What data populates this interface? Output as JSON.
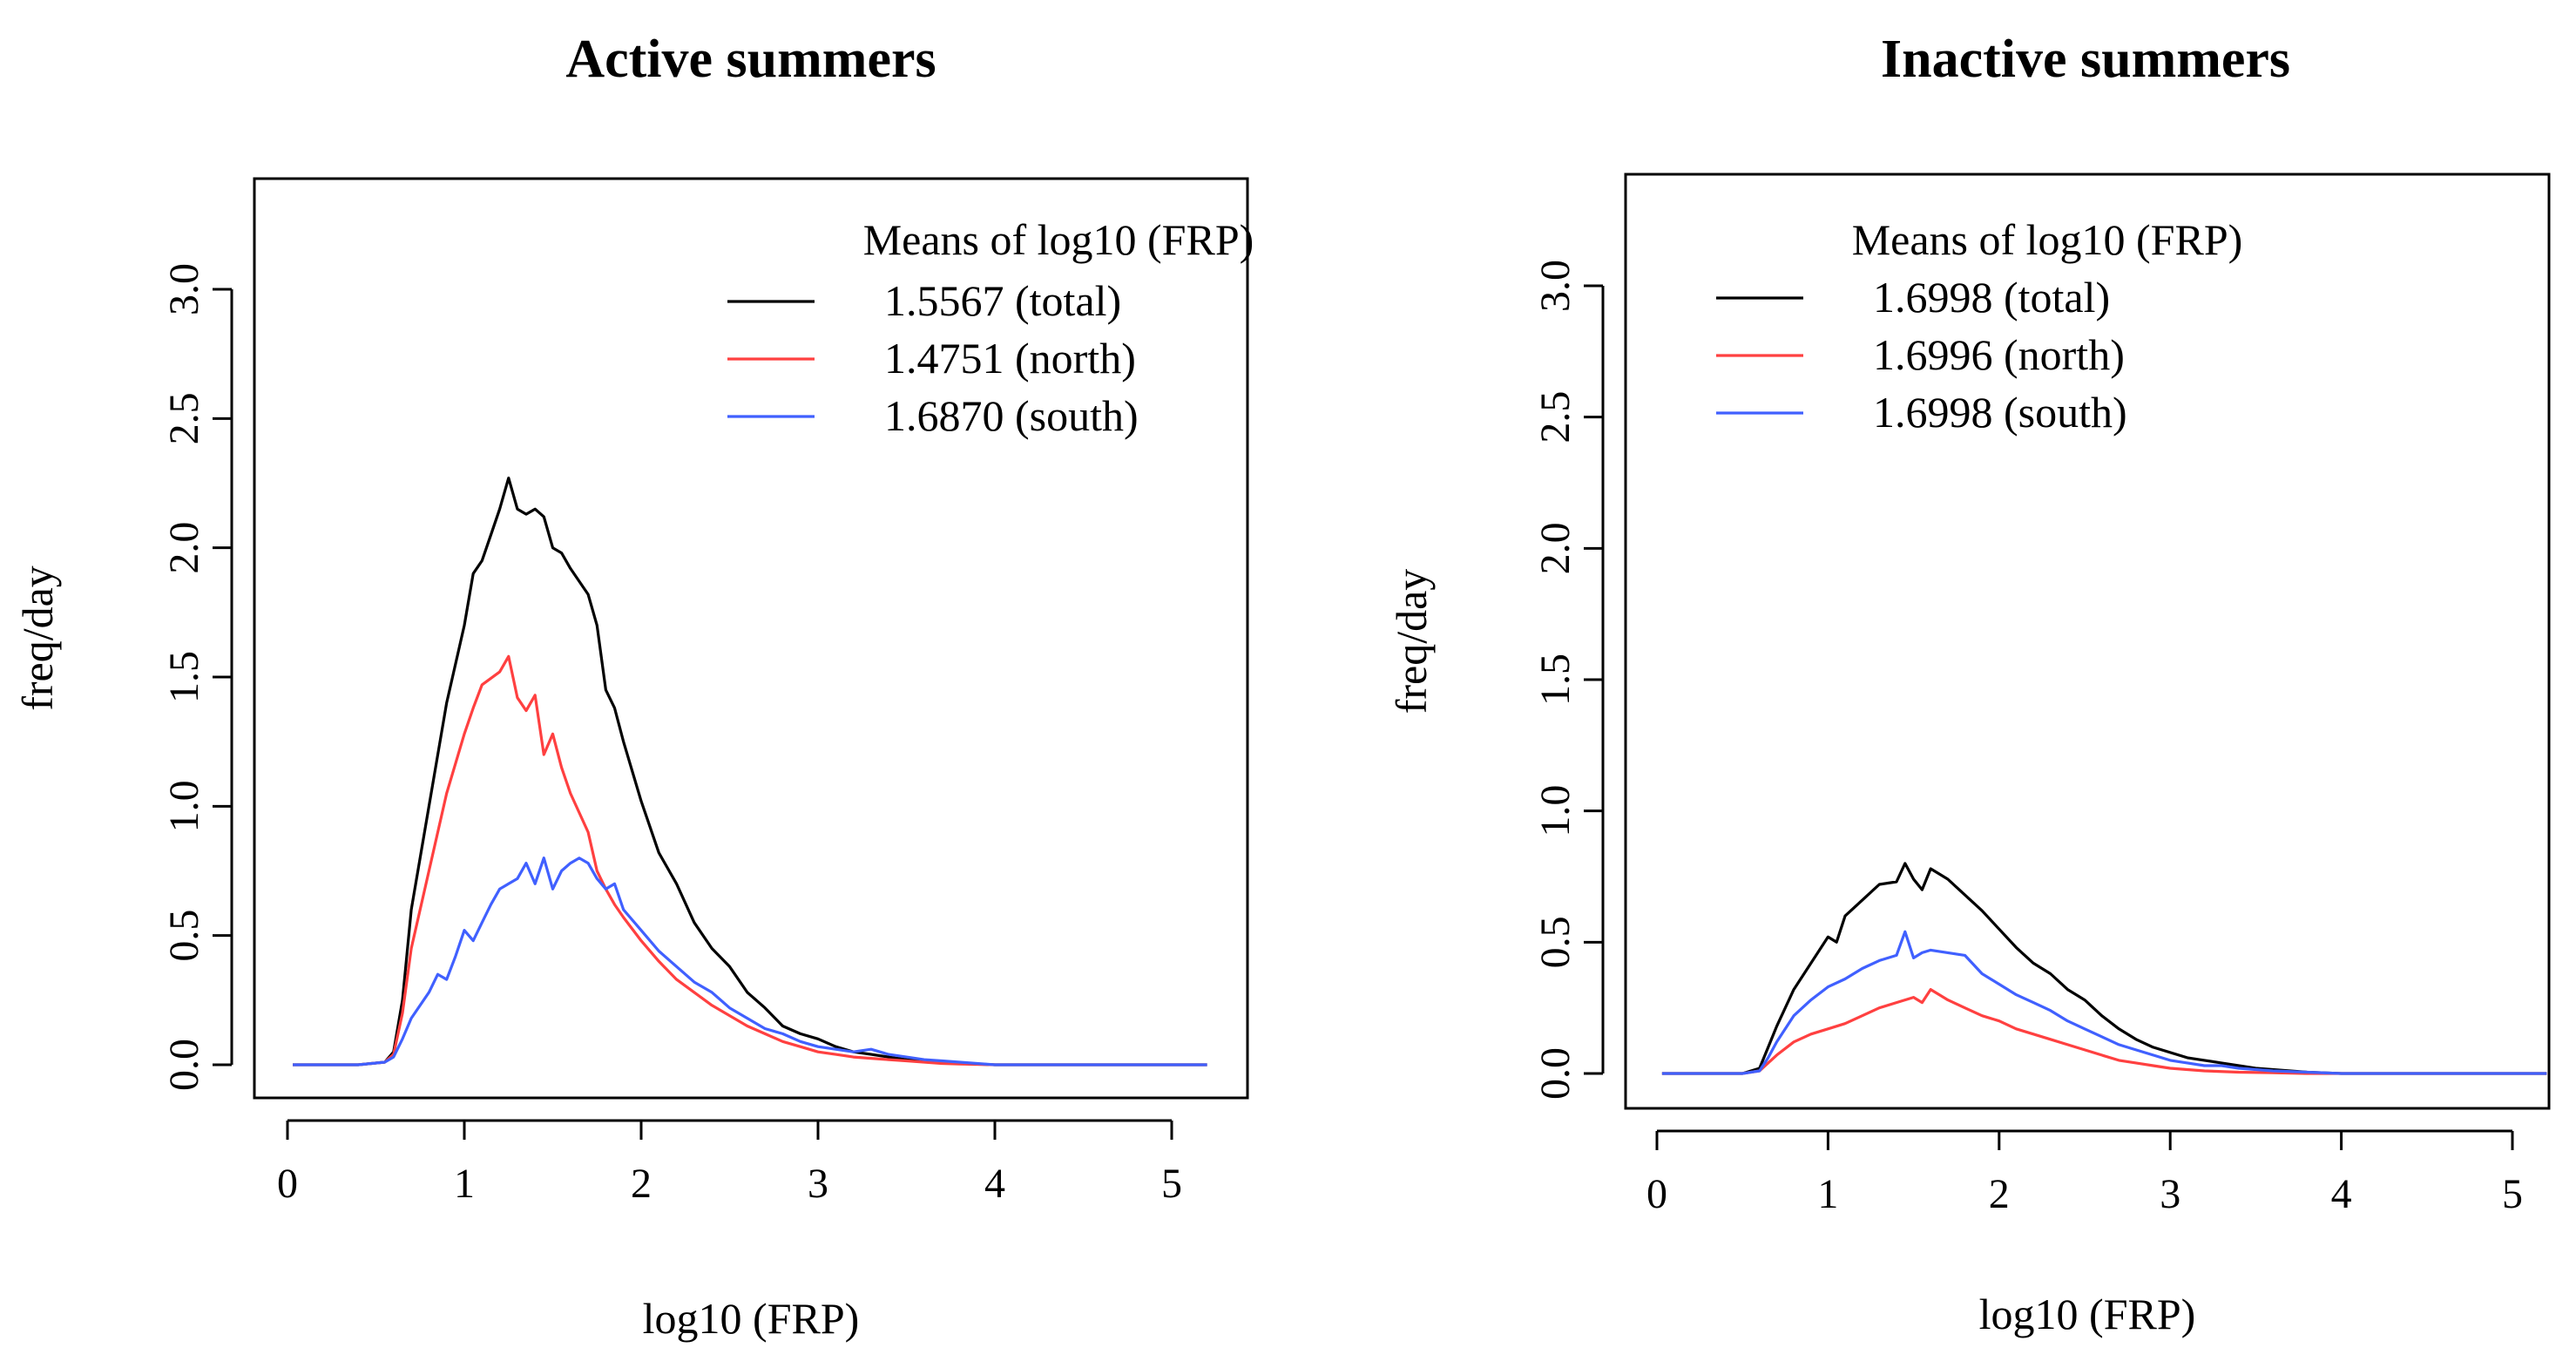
{
  "chart_data": [
    {
      "type": "line",
      "title": "Active summers",
      "xlabel": "log10 (FRP)",
      "ylabel": "freq/day",
      "xlim": [
        0,
        5
      ],
      "ylim": [
        0,
        3.0
      ],
      "x_ticks": [
        "0",
        "1",
        "2",
        "3",
        "4",
        "5"
      ],
      "y_ticks": [
        "0.0",
        "0.5",
        "1.0",
        "1.5",
        "2.0",
        "2.5",
        "3.0"
      ],
      "legend": {
        "title": "Means of log10 (FRP)",
        "position": "top-right"
      },
      "series": [
        {
          "name": "1.5567 (total)",
          "color": "#000000",
          "x": [
            0.03,
            0.4,
            0.55,
            0.6,
            0.65,
            0.7,
            0.8,
            0.9,
            1.0,
            1.05,
            1.1,
            1.15,
            1.2,
            1.25,
            1.3,
            1.35,
            1.4,
            1.45,
            1.5,
            1.55,
            1.6,
            1.7,
            1.75,
            1.8,
            1.85,
            1.9,
            2.0,
            2.1,
            2.2,
            2.3,
            2.4,
            2.5,
            2.6,
            2.7,
            2.8,
            2.9,
            3.0,
            3.1,
            3.2,
            3.3,
            3.4,
            3.5,
            3.6,
            3.7,
            3.8,
            3.9,
            4.0,
            4.5,
            5.0,
            5.2
          ],
          "y": [
            0.0,
            0.0,
            0.01,
            0.05,
            0.25,
            0.6,
            1.0,
            1.4,
            1.7,
            1.9,
            1.95,
            2.05,
            2.15,
            2.27,
            2.15,
            2.13,
            2.15,
            2.12,
            2.0,
            1.98,
            1.92,
            1.82,
            1.7,
            1.45,
            1.38,
            1.25,
            1.02,
            0.82,
            0.7,
            0.55,
            0.45,
            0.38,
            0.28,
            0.22,
            0.15,
            0.12,
            0.1,
            0.07,
            0.05,
            0.04,
            0.03,
            0.02,
            0.015,
            0.01,
            0.005,
            0.003,
            0.0,
            0.0,
            0.0,
            0.0
          ]
        },
        {
          "name": "1.4751 (north)",
          "color": "#ff4040",
          "x": [
            0.03,
            0.4,
            0.55,
            0.6,
            0.65,
            0.7,
            0.8,
            0.9,
            1.0,
            1.05,
            1.1,
            1.2,
            1.25,
            1.3,
            1.35,
            1.4,
            1.45,
            1.5,
            1.55,
            1.6,
            1.7,
            1.75,
            1.8,
            1.85,
            1.9,
            2.0,
            2.1,
            2.2,
            2.3,
            2.4,
            2.5,
            2.6,
            2.7,
            2.8,
            2.9,
            3.0,
            3.1,
            3.2,
            3.3,
            3.4,
            3.5,
            3.6,
            3.7,
            3.8,
            4.0,
            4.5,
            5.0,
            5.2
          ],
          "y": [
            0.0,
            0.0,
            0.01,
            0.04,
            0.2,
            0.45,
            0.75,
            1.05,
            1.28,
            1.38,
            1.47,
            1.52,
            1.58,
            1.42,
            1.37,
            1.43,
            1.2,
            1.28,
            1.15,
            1.05,
            0.9,
            0.75,
            0.68,
            0.62,
            0.57,
            0.48,
            0.4,
            0.33,
            0.28,
            0.23,
            0.19,
            0.15,
            0.12,
            0.09,
            0.07,
            0.05,
            0.04,
            0.03,
            0.025,
            0.02,
            0.015,
            0.01,
            0.005,
            0.003,
            0.0,
            0.0,
            0.0,
            0.0
          ]
        },
        {
          "name": "1.6870 (south)",
          "color": "#4060ff",
          "x": [
            0.03,
            0.4,
            0.55,
            0.6,
            0.65,
            0.7,
            0.8,
            0.85,
            0.9,
            0.95,
            1.0,
            1.05,
            1.1,
            1.15,
            1.2,
            1.25,
            1.3,
            1.35,
            1.4,
            1.45,
            1.5,
            1.55,
            1.6,
            1.65,
            1.7,
            1.75,
            1.8,
            1.85,
            1.9,
            2.0,
            2.1,
            2.2,
            2.3,
            2.4,
            2.5,
            2.6,
            2.7,
            2.8,
            2.9,
            3.0,
            3.1,
            3.2,
            3.3,
            3.4,
            3.5,
            3.6,
            3.7,
            3.8,
            4.0,
            4.5,
            5.0,
            5.2
          ],
          "y": [
            0.0,
            0.0,
            0.01,
            0.03,
            0.1,
            0.18,
            0.28,
            0.35,
            0.33,
            0.42,
            0.52,
            0.48,
            0.55,
            0.62,
            0.68,
            0.7,
            0.72,
            0.78,
            0.7,
            0.8,
            0.68,
            0.75,
            0.78,
            0.8,
            0.78,
            0.72,
            0.68,
            0.7,
            0.6,
            0.52,
            0.44,
            0.38,
            0.32,
            0.28,
            0.22,
            0.18,
            0.14,
            0.12,
            0.09,
            0.07,
            0.06,
            0.05,
            0.06,
            0.04,
            0.03,
            0.02,
            0.015,
            0.01,
            0.0,
            0.0,
            0.0,
            0.0
          ]
        }
      ]
    },
    {
      "type": "line",
      "title": "Inactive summers",
      "xlabel": "log10 (FRP)",
      "ylabel": "freq/day",
      "xlim": [
        0,
        5
      ],
      "ylim": [
        0,
        3.0
      ],
      "x_ticks": [
        "0",
        "1",
        "2",
        "3",
        "4",
        "5"
      ],
      "y_ticks": [
        "0.0",
        "0.5",
        "1.0",
        "1.5",
        "2.0",
        "2.5",
        "3.0"
      ],
      "legend": {
        "title": "Means of log10 (FRP)",
        "position": "top-right"
      },
      "series": [
        {
          "name": "1.6998 (total)",
          "color": "#000000",
          "x": [
            0.03,
            0.5,
            0.6,
            0.65,
            0.7,
            0.8,
            0.9,
            1.0,
            1.05,
            1.1,
            1.2,
            1.3,
            1.4,
            1.45,
            1.5,
            1.55,
            1.6,
            1.65,
            1.7,
            1.8,
            1.9,
            2.0,
            2.1,
            2.2,
            2.3,
            2.4,
            2.5,
            2.6,
            2.7,
            2.8,
            2.9,
            3.0,
            3.1,
            3.2,
            3.3,
            3.4,
            3.5,
            3.6,
            3.8,
            4.0,
            4.5,
            5.0,
            5.2
          ],
          "y": [
            0.0,
            0.0,
            0.02,
            0.1,
            0.18,
            0.32,
            0.42,
            0.52,
            0.5,
            0.6,
            0.66,
            0.72,
            0.73,
            0.8,
            0.74,
            0.7,
            0.78,
            0.76,
            0.74,
            0.68,
            0.62,
            0.55,
            0.48,
            0.42,
            0.38,
            0.32,
            0.28,
            0.22,
            0.17,
            0.13,
            0.1,
            0.08,
            0.06,
            0.05,
            0.04,
            0.03,
            0.02,
            0.015,
            0.005,
            0.0,
            0.0,
            0.0,
            0.0
          ]
        },
        {
          "name": "1.6996 (north)",
          "color": "#ff4040",
          "x": [
            0.03,
            0.5,
            0.6,
            0.65,
            0.7,
            0.8,
            0.9,
            1.0,
            1.1,
            1.2,
            1.3,
            1.4,
            1.5,
            1.55,
            1.6,
            1.65,
            1.7,
            1.8,
            1.9,
            2.0,
            2.1,
            2.2,
            2.3,
            2.4,
            2.5,
            2.6,
            2.7,
            2.8,
            2.9,
            3.0,
            3.1,
            3.2,
            3.4,
            3.6,
            3.8,
            4.0,
            4.5,
            5.0,
            5.2
          ],
          "y": [
            0.0,
            0.0,
            0.01,
            0.04,
            0.07,
            0.12,
            0.15,
            0.17,
            0.19,
            0.22,
            0.25,
            0.27,
            0.29,
            0.27,
            0.32,
            0.3,
            0.28,
            0.25,
            0.22,
            0.2,
            0.17,
            0.15,
            0.13,
            0.11,
            0.09,
            0.07,
            0.05,
            0.04,
            0.03,
            0.02,
            0.015,
            0.01,
            0.005,
            0.003,
            0.0,
            0.0,
            0.0,
            0.0,
            0.0
          ]
        },
        {
          "name": "1.6998 (south)",
          "color": "#4060ff",
          "x": [
            0.03,
            0.5,
            0.6,
            0.65,
            0.7,
            0.8,
            0.9,
            1.0,
            1.1,
            1.2,
            1.3,
            1.4,
            1.45,
            1.5,
            1.55,
            1.6,
            1.7,
            1.8,
            1.9,
            2.0,
            2.1,
            2.2,
            2.3,
            2.4,
            2.5,
            2.6,
            2.7,
            2.8,
            2.9,
            3.0,
            3.1,
            3.2,
            3.3,
            3.4,
            3.5,
            3.6,
            3.8,
            4.0,
            4.5,
            5.0,
            5.2
          ],
          "y": [
            0.0,
            0.0,
            0.01,
            0.06,
            0.12,
            0.22,
            0.28,
            0.33,
            0.36,
            0.4,
            0.43,
            0.45,
            0.54,
            0.44,
            0.46,
            0.47,
            0.46,
            0.45,
            0.38,
            0.34,
            0.3,
            0.27,
            0.24,
            0.2,
            0.17,
            0.14,
            0.11,
            0.09,
            0.07,
            0.05,
            0.04,
            0.03,
            0.03,
            0.02,
            0.015,
            0.01,
            0.005,
            0.0,
            0.0,
            0.0,
            0.0
          ]
        }
      ]
    }
  ]
}
